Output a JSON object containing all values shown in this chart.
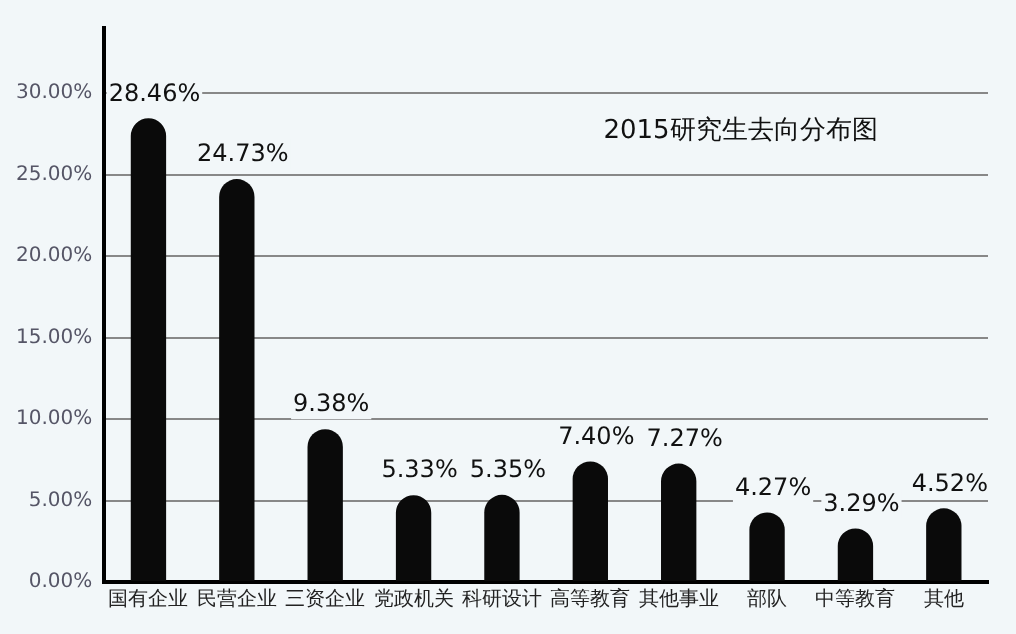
{
  "chart_data": {
    "type": "bar",
    "title": "2015研究生去向分布图",
    "categories": [
      "国有企业",
      "民营企业",
      "三资企业",
      "党政机关",
      "科研设计",
      "高等教育",
      "其他事业",
      "部队",
      "中等教育",
      "其他"
    ],
    "values": [
      28.46,
      24.73,
      9.38,
      5.33,
      5.35,
      7.4,
      7.27,
      4.27,
      3.29,
      4.52
    ],
    "value_labels": [
      "28.46%",
      "24.73%",
      "9.38%",
      "5.33%",
      "5.35%",
      "7.40%",
      "7.27%",
      "4.27%",
      "3.29%",
      "4.52%"
    ],
    "color": "#0a0a0a",
    "ylim": [
      0,
      34
    ],
    "yticks": [
      {
        "value": 0,
        "label": "0.00%"
      },
      {
        "value": 5,
        "label": "5.00%"
      },
      {
        "value": 10,
        "label": "10.00%"
      },
      {
        "value": 15,
        "label": "15.00%"
      },
      {
        "value": 20,
        "label": "20.00%"
      },
      {
        "value": 25,
        "label": "25.00%"
      },
      {
        "value": 30,
        "label": "30.00%"
      }
    ],
    "grid": "y",
    "legend": false
  }
}
